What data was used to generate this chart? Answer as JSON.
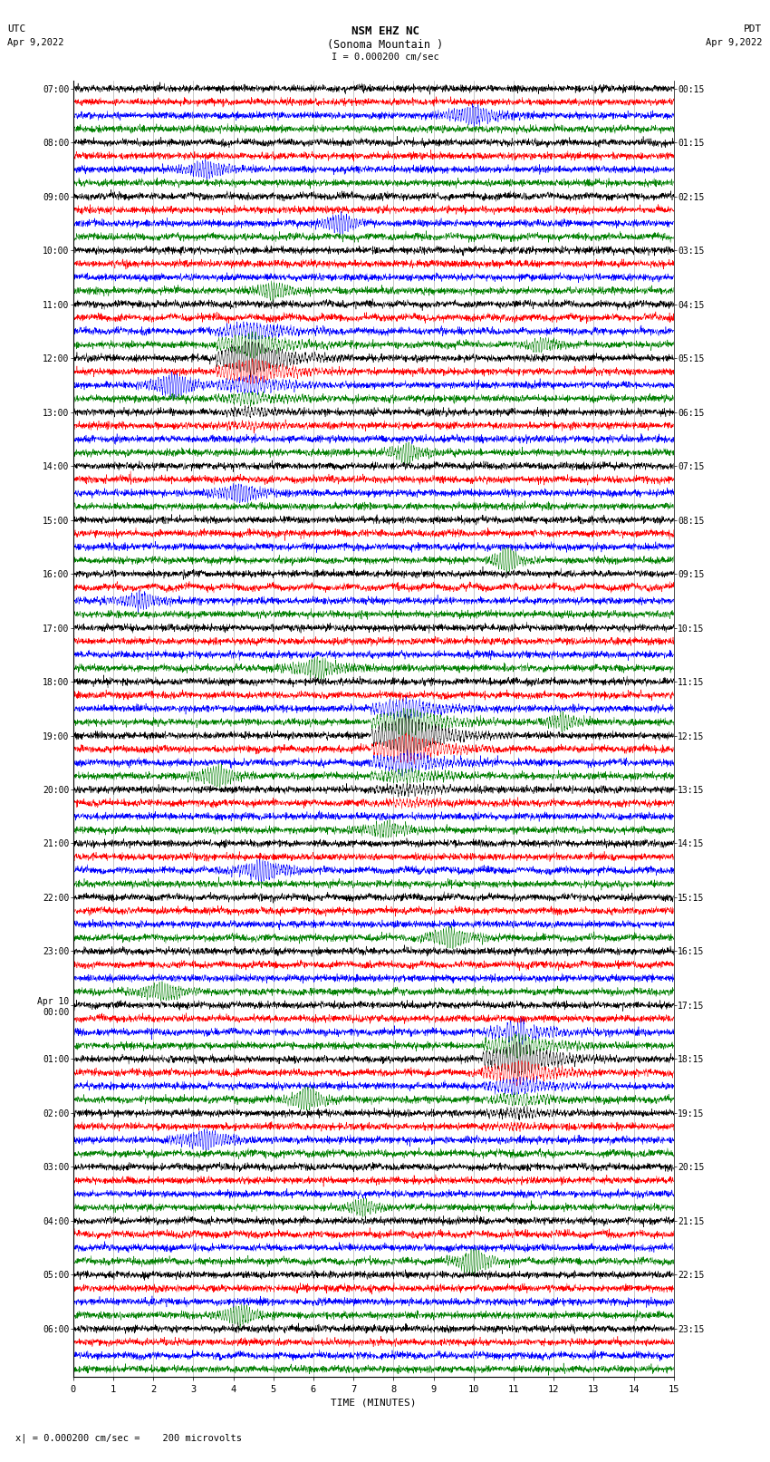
{
  "title_line1": "NSM EHZ NC",
  "title_line2": "(Sonoma Mountain )",
  "scale_text": "I = 0.000200 cm/sec",
  "left_header": "UTC",
  "left_date": "Apr 9,2022",
  "right_header": "PDT",
  "right_date": "Apr 9,2022",
  "xlabel": "TIME (MINUTES)",
  "footer_text": "x| = 0.000200 cm/sec =    200 microvolts",
  "background_color": "#ffffff",
  "trace_colors": [
    "black",
    "red",
    "blue",
    "green"
  ],
  "utc_labels": [
    "07:00",
    "",
    "",
    "",
    "08:00",
    "",
    "",
    "",
    "09:00",
    "",
    "",
    "",
    "10:00",
    "",
    "",
    "",
    "11:00",
    "",
    "",
    "",
    "12:00",
    "",
    "",
    "",
    "13:00",
    "",
    "",
    "",
    "14:00",
    "",
    "",
    "",
    "15:00",
    "",
    "",
    "",
    "16:00",
    "",
    "",
    "",
    "17:00",
    "",
    "",
    "",
    "18:00",
    "",
    "",
    "",
    "19:00",
    "",
    "",
    "",
    "20:00",
    "",
    "",
    "",
    "21:00",
    "",
    "",
    "",
    "22:00",
    "",
    "",
    "",
    "23:00",
    "",
    "",
    "",
    "Apr 10\n00:00",
    "",
    "",
    "",
    "01:00",
    "",
    "",
    "",
    "02:00",
    "",
    "",
    "",
    "03:00",
    "",
    "",
    "",
    "04:00",
    "",
    "",
    "",
    "05:00",
    "",
    "",
    "",
    "06:00",
    "",
    "",
    ""
  ],
  "pdt_labels": [
    "00:15",
    "",
    "",
    "",
    "01:15",
    "",
    "",
    "",
    "02:15",
    "",
    "",
    "",
    "03:15",
    "",
    "",
    "",
    "04:15",
    "",
    "",
    "",
    "05:15",
    "",
    "",
    "",
    "06:15",
    "",
    "",
    "",
    "07:15",
    "",
    "",
    "",
    "08:15",
    "",
    "",
    "",
    "09:15",
    "",
    "",
    "",
    "10:15",
    "",
    "",
    "",
    "11:15",
    "",
    "",
    "",
    "12:15",
    "",
    "",
    "",
    "13:15",
    "",
    "",
    "",
    "14:15",
    "",
    "",
    "",
    "15:15",
    "",
    "",
    "",
    "16:15",
    "",
    "",
    "",
    "17:15",
    "",
    "",
    "",
    "18:15",
    "",
    "",
    "",
    "19:15",
    "",
    "",
    "",
    "20:15",
    "",
    "",
    "",
    "21:15",
    "",
    "",
    "",
    "22:15",
    "",
    "",
    "",
    "23:15",
    "",
    "",
    ""
  ],
  "n_rows": 96,
  "n_cols": 2700,
  "xmin": 0,
  "xmax": 15,
  "noise_scale": 0.28,
  "fig_width": 8.5,
  "fig_height": 16.13,
  "dpi": 100
}
